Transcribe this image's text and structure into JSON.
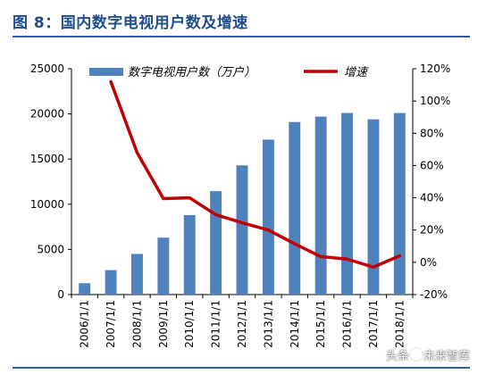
{
  "header": {
    "title": "图 8：国内数字电视用户数及增速"
  },
  "colors": {
    "title": "#1f4e8c",
    "bar": "#4f81bd",
    "line": "#c00000",
    "rule": "#2f5d9f"
  },
  "watermark": {
    "prefix": "头条",
    "suffix": "未来智库",
    "icon": "at-sign-icon"
  },
  "chart_data": {
    "type": "bar",
    "categories": [
      "2006/1/1",
      "2007/1/1",
      "2008/1/1",
      "2009/1/1",
      "2010/1/1",
      "2011/1/1",
      "2012/1/1",
      "2013/1/1",
      "2014/1/1",
      "2015/1/1",
      "2016/1/1",
      "2017/1/1",
      "2018/1/1"
    ],
    "series": [
      {
        "name": "数字电视用户数（万户）",
        "type": "bar",
        "axis": "left",
        "values": [
          1260,
          2700,
          4500,
          6300,
          8800,
          11450,
          14300,
          17150,
          19100,
          19700,
          20100,
          19400,
          20100
        ]
      },
      {
        "name": "增速",
        "type": "line",
        "axis": "right",
        "values": [
          null,
          112,
          68,
          39.5,
          40,
          29.5,
          24.5,
          20,
          11.5,
          3.5,
          2,
          -3,
          4
        ]
      }
    ],
    "y_left": {
      "ylim": [
        0,
        25000
      ],
      "ticks": [
        "0",
        "5000",
        "10000",
        "15000",
        "20000",
        "25000"
      ]
    },
    "y_right": {
      "ylim": [
        -20,
        120
      ],
      "ticks": [
        "-20%",
        "0%",
        "20%",
        "40%",
        "60%",
        "80%",
        "100%",
        "120%"
      ]
    },
    "legend_position": "top",
    "grid": false
  }
}
